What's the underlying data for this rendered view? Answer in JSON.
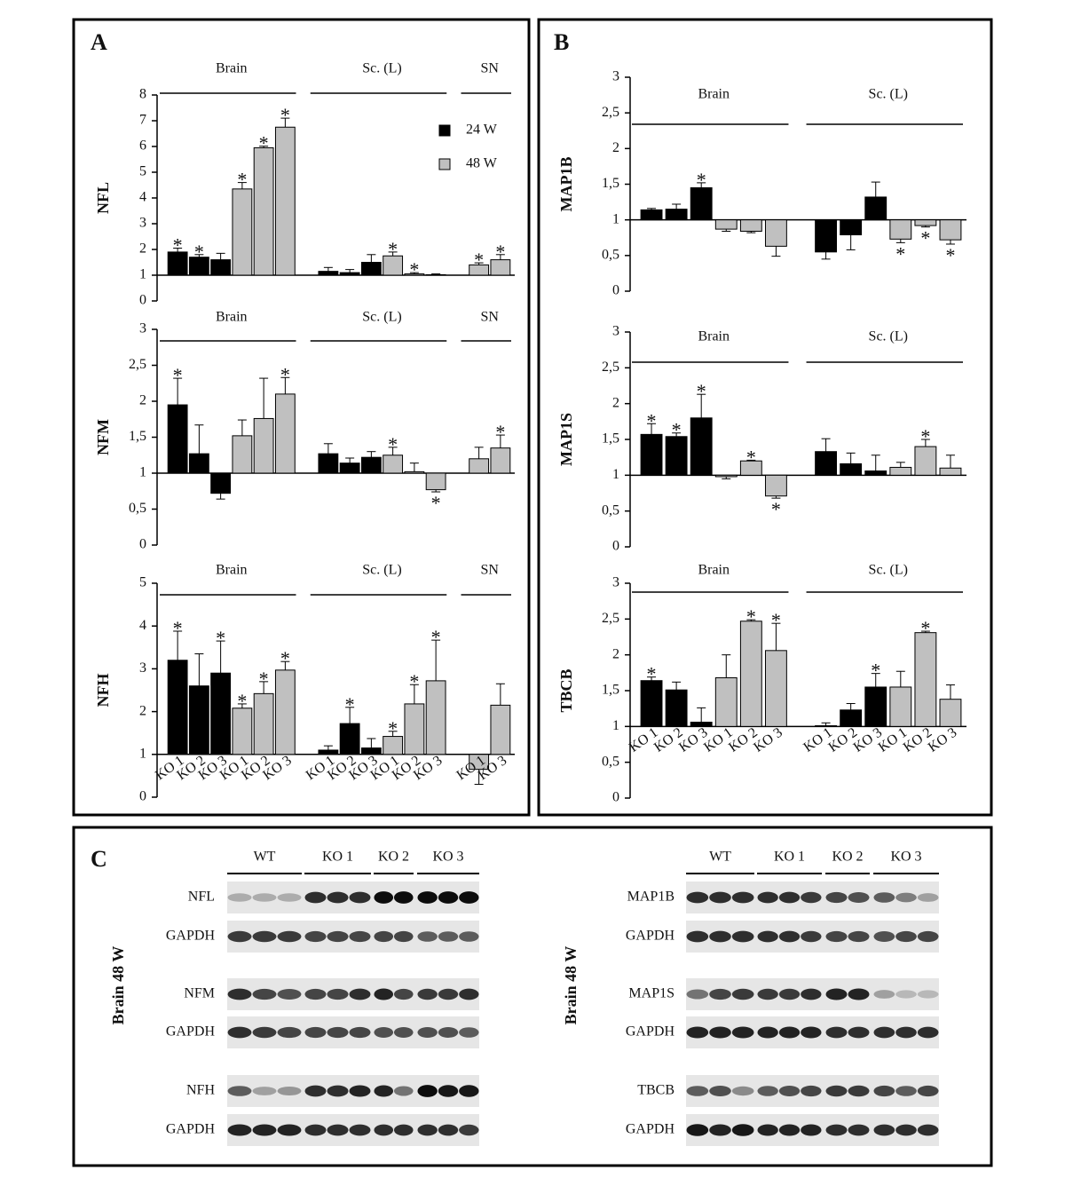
{
  "panels": [
    "A",
    "B",
    "C"
  ],
  "chart_data": [
    {
      "type": "bar",
      "y_label": "NFL",
      "ylim": [
        0,
        8
      ],
      "yticks": [
        0,
        1,
        2,
        3,
        4,
        5,
        6,
        7,
        8
      ],
      "baseline": 1,
      "legend": true,
      "groups": [
        {
          "label": "Brain",
          "count": 6
        },
        {
          "label": "Sc. (L)",
          "count": 6
        },
        {
          "label": "SN",
          "count": 2
        }
      ],
      "categories": [
        null,
        null,
        null,
        null,
        null,
        null,
        null,
        null,
        null,
        null,
        null,
        null,
        null,
        null
      ],
      "series": [
        {
          "name": "24 W",
          "color": "#000000",
          "values": [
            1.9,
            1.7,
            1.6,
            null,
            null,
            null,
            1.15,
            1.1,
            1.5,
            null,
            null,
            null,
            null,
            null
          ],
          "errors": [
            0.15,
            0.1,
            0.25,
            null,
            null,
            null,
            0.15,
            0.12,
            0.3,
            null,
            null,
            null,
            null,
            null
          ],
          "annotations": [
            "*",
            "*",
            null,
            null,
            null,
            null,
            null,
            null,
            null,
            null,
            null,
            null,
            null,
            null
          ]
        },
        {
          "name": "48 W",
          "color": "#c0c0c0",
          "values": [
            null,
            null,
            null,
            4.35,
            5.95,
            6.75,
            null,
            null,
            null,
            1.75,
            1.05,
            1.02,
            1.4,
            1.6
          ],
          "errors": [
            null,
            null,
            null,
            0.25,
            0.06,
            0.35,
            null,
            null,
            null,
            0.15,
            0.05,
            0.03,
            0.08,
            0.2
          ],
          "annotations": [
            null,
            null,
            null,
            "*",
            "*",
            "*",
            null,
            null,
            null,
            "*",
            "*",
            null,
            "*",
            "*"
          ]
        }
      ]
    },
    {
      "type": "bar",
      "y_label": "NFM",
      "ylim": [
        0,
        3
      ],
      "yticks": [
        0,
        {
          "value": 0.5,
          "label": "0,5"
        },
        1,
        {
          "value": 1.5,
          "label": "1,5"
        },
        2,
        {
          "value": 2.5,
          "label": "2,5"
        },
        3
      ],
      "baseline": 1,
      "groups": [
        {
          "label": "Brain",
          "count": 6
        },
        {
          "label": "Sc. (L)",
          "count": 6
        },
        {
          "label": "SN",
          "count": 2
        }
      ],
      "categories": [
        null,
        null,
        null,
        null,
        null,
        null,
        null,
        null,
        null,
        null,
        null,
        null,
        null,
        null
      ],
      "series": [
        {
          "color": "#000000",
          "values": [
            1.95,
            1.27,
            0.72,
            null,
            null,
            null,
            1.27,
            1.14,
            1.22,
            null,
            null,
            null,
            null,
            null
          ],
          "errors": [
            0.37,
            0.4,
            0.08,
            null,
            null,
            null,
            0.14,
            0.07,
            0.08,
            null,
            null,
            null,
            null,
            null
          ],
          "annotations": [
            "*",
            null,
            null,
            null,
            null,
            null,
            null,
            null,
            null,
            null,
            null,
            null,
            null,
            null
          ]
        },
        {
          "color": "#c0c0c0",
          "values": [
            null,
            null,
            null,
            1.52,
            1.76,
            2.1,
            null,
            null,
            null,
            1.25,
            1.02,
            0.77,
            1.2,
            1.35
          ],
          "errors": [
            null,
            null,
            null,
            0.22,
            0.56,
            0.23,
            null,
            null,
            null,
            0.11,
            0.12,
            0.03,
            0.16,
            0.18
          ],
          "annotations": [
            null,
            null,
            null,
            null,
            null,
            "*",
            null,
            null,
            null,
            "*",
            null,
            "*",
            null,
            "*"
          ]
        }
      ]
    },
    {
      "type": "bar",
      "y_label": "NFH",
      "ylim": [
        0,
        5
      ],
      "yticks": [
        0,
        1,
        2,
        3,
        4,
        5
      ],
      "baseline": 1,
      "groups": [
        {
          "label": "Brain",
          "count": 6
        },
        {
          "label": "Sc. (L)",
          "count": 6
        },
        {
          "label": "SN",
          "count": 2
        }
      ],
      "categories": [
        "KO 1",
        "KO 2",
        "KO 3",
        "KO 1",
        "KO 2",
        "KO 3",
        "KO 1",
        "KO 2",
        "KO 3",
        "KO 1",
        "KO 2",
        "KO 3",
        "KO 1",
        "KO 3"
      ],
      "series": [
        {
          "color": "#000000",
          "values": [
            3.2,
            2.6,
            2.9,
            null,
            null,
            null,
            1.1,
            1.72,
            1.15,
            null,
            null,
            null,
            null,
            null
          ],
          "errors": [
            0.68,
            0.75,
            0.75,
            null,
            null,
            null,
            0.1,
            0.38,
            0.22,
            null,
            null,
            null,
            null,
            null
          ],
          "annotations": [
            "*",
            null,
            "*",
            null,
            null,
            null,
            null,
            "*",
            null,
            null,
            null,
            null,
            null,
            null
          ]
        },
        {
          "color": "#c0c0c0",
          "values": [
            null,
            null,
            null,
            2.08,
            2.42,
            2.97,
            null,
            null,
            null,
            1.42,
            2.18,
            2.72,
            0.65,
            2.15
          ],
          "errors": [
            null,
            null,
            null,
            0.1,
            0.28,
            0.2,
            null,
            null,
            null,
            0.12,
            0.45,
            0.95,
            0.35,
            0.5
          ],
          "annotations": [
            null,
            null,
            null,
            "*",
            "*",
            "*",
            null,
            null,
            null,
            "*",
            "*",
            "*",
            null,
            null
          ]
        }
      ]
    },
    {
      "type": "bar",
      "y_label": "MAP1B",
      "ylim": [
        0,
        3
      ],
      "yticks": [
        0,
        {
          "value": 0.5,
          "label": "0,5"
        },
        1,
        {
          "value": 1.5,
          "label": "1,5"
        },
        2,
        {
          "value": 2.5,
          "label": "2,5"
        },
        3
      ],
      "baseline": 1,
      "groups": [
        {
          "label": "Brain",
          "count": 6
        },
        {
          "label": "Sc. (L)",
          "count": 6
        }
      ],
      "categories": [
        null,
        null,
        null,
        null,
        null,
        null,
        null,
        null,
        null,
        null,
        null,
        null
      ],
      "series": [
        {
          "color": "#000000",
          "values": [
            1.14,
            1.15,
            1.45,
            null,
            null,
            null,
            0.55,
            0.79,
            1.32,
            null,
            null,
            null
          ],
          "errors": [
            0.02,
            0.07,
            0.07,
            null,
            null,
            null,
            0.1,
            0.21,
            0.21,
            null,
            null,
            null
          ],
          "annotations": [
            null,
            null,
            "*",
            null,
            null,
            null,
            null,
            null,
            null,
            null,
            null,
            null
          ]
        },
        {
          "color": "#c0c0c0",
          "values": [
            null,
            null,
            null,
            0.87,
            0.84,
            0.63,
            null,
            null,
            null,
            0.73,
            0.92,
            0.72
          ],
          "errors": [
            null,
            null,
            null,
            0.03,
            0.02,
            0.14,
            null,
            null,
            null,
            0.05,
            0.02,
            0.06
          ],
          "annotations": [
            null,
            null,
            null,
            null,
            null,
            null,
            null,
            null,
            null,
            "*",
            "*",
            "*"
          ]
        }
      ]
    },
    {
      "type": "bar",
      "y_label": "MAP1S",
      "ylim": [
        0,
        3
      ],
      "yticks": [
        0,
        {
          "value": 0.5,
          "label": "0,5"
        },
        1,
        {
          "value": 1.5,
          "label": "1,5"
        },
        2,
        {
          "value": 2.5,
          "label": "2,5"
        },
        3
      ],
      "baseline": 1,
      "groups": [
        {
          "label": "Brain",
          "count": 6
        },
        {
          "label": "Sc. (L)",
          "count": 6
        }
      ],
      "categories": [
        null,
        null,
        null,
        null,
        null,
        null,
        null,
        null,
        null,
        null,
        null,
        null
      ],
      "series": [
        {
          "color": "#000000",
          "values": [
            1.57,
            1.54,
            1.8,
            null,
            null,
            null,
            1.33,
            1.16,
            1.06,
            null,
            null,
            null
          ],
          "errors": [
            0.15,
            0.05,
            0.33,
            null,
            null,
            null,
            0.18,
            0.15,
            0.22,
            null,
            null,
            null
          ],
          "annotations": [
            "*",
            "*",
            "*",
            null,
            null,
            null,
            null,
            null,
            null,
            null,
            null,
            null
          ]
        },
        {
          "color": "#c0c0c0",
          "values": [
            null,
            null,
            null,
            0.98,
            1.2,
            0.71,
            null,
            null,
            null,
            1.11,
            1.4,
            1.1
          ],
          "errors": [
            null,
            null,
            null,
            0.03,
            0.01,
            0.03,
            null,
            null,
            null,
            0.07,
            0.1,
            0.18
          ],
          "annotations": [
            null,
            null,
            null,
            null,
            "*",
            "*",
            null,
            null,
            null,
            null,
            "*",
            null
          ]
        }
      ]
    },
    {
      "type": "bar",
      "y_label": "TBCB",
      "ylim": [
        0,
        3
      ],
      "yticks": [
        0,
        {
          "value": 0.5,
          "label": "0,5"
        },
        1,
        {
          "value": 1.5,
          "label": "1,5"
        },
        2,
        {
          "value": 2.5,
          "label": "2,5"
        },
        3
      ],
      "baseline": 1,
      "groups": [
        {
          "label": "Brain",
          "count": 6
        },
        {
          "label": "Sc. (L)",
          "count": 6
        }
      ],
      "categories": [
        "KO 1",
        "KO 2",
        "KO 3",
        "KO 1",
        "KO 2",
        "KO 3",
        "KO 1",
        "KO 2",
        "KO 3",
        "KO 1",
        "KO 2",
        "KO 3"
      ],
      "series": [
        {
          "color": "#000000",
          "values": [
            1.64,
            1.51,
            1.06,
            null,
            null,
            null,
            1.01,
            1.23,
            1.55,
            null,
            null,
            null
          ],
          "errors": [
            0.05,
            0.11,
            0.2,
            null,
            null,
            null,
            0.04,
            0.09,
            0.19,
            null,
            null,
            null
          ],
          "annotations": [
            "*",
            null,
            null,
            null,
            null,
            null,
            null,
            null,
            "*",
            null,
            null,
            null
          ]
        },
        {
          "color": "#c0c0c0",
          "values": [
            null,
            null,
            null,
            1.68,
            2.47,
            2.06,
            null,
            null,
            null,
            1.55,
            2.31,
            1.38
          ],
          "errors": [
            null,
            null,
            null,
            0.32,
            0.02,
            0.38,
            null,
            null,
            null,
            0.22,
            0.02,
            0.2
          ],
          "annotations": [
            null,
            null,
            null,
            null,
            "*",
            "*",
            null,
            null,
            null,
            null,
            "*",
            null
          ]
        }
      ]
    }
  ],
  "blots": [
    {
      "side_label": "Brain 48 W",
      "lanes": [
        "WT",
        "KO 1",
        "KO 2",
        "KO 3"
      ],
      "rows": [
        "NFL",
        "GAPDH",
        "NFM",
        "GAPDH",
        "NFH",
        "GAPDH"
      ]
    },
    {
      "side_label": "Brain 48 W",
      "lanes": [
        "WT",
        "KO 1",
        "KO 2",
        "KO 3"
      ],
      "rows": [
        "MAP1B",
        "GAPDH",
        "MAP1S",
        "GAPDH",
        "TBCB",
        "GAPDH"
      ]
    }
  ]
}
